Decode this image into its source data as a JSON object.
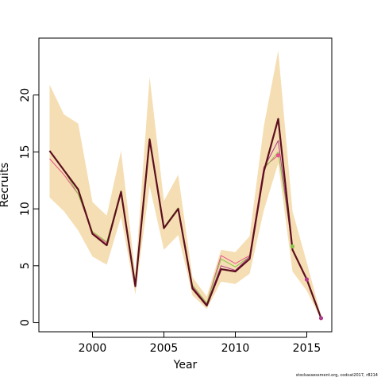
{
  "chart_data": {
    "type": "line",
    "xlabel": "Year",
    "ylabel": "Recruits",
    "xlim": [
      1996.25,
      2016.75
    ],
    "ylim": [
      -0.8,
      25.0
    ],
    "x_ticks": [
      2000,
      2005,
      2010,
      2015
    ],
    "x_tick_labels": [
      "2000",
      "2005",
      "2010",
      "2015"
    ],
    "y_ticks": [
      0,
      5,
      10,
      15,
      20
    ],
    "y_tick_labels": [
      "0",
      "5",
      "10",
      "15",
      "20"
    ],
    "grid": false,
    "legend": "none",
    "x": [
      1997,
      1998,
      1999,
      2000,
      2001,
      2002,
      2003,
      2004,
      2005,
      2006,
      2007,
      2008,
      2009,
      2010,
      2011,
      2012,
      2013,
      2014,
      2015,
      2016
    ],
    "band": {
      "color": "#f5deb3",
      "upper": [
        20.9,
        18.3,
        17.5,
        10.6,
        9.4,
        15.1,
        4.3,
        21.6,
        10.7,
        13.0,
        4.0,
        2.3,
        6.4,
        6.2,
        7.6,
        17.3,
        23.9,
        9.8,
        5.3,
        0.6
      ],
      "lower": [
        11.0,
        9.8,
        8.1,
        5.8,
        5.1,
        9.3,
        2.5,
        12.0,
        6.4,
        7.7,
        2.4,
        1.2,
        3.6,
        3.4,
        4.3,
        9.9,
        14.0,
        4.5,
        2.8,
        0.3
      ]
    },
    "series": [
      {
        "color": "#e8508a",
        "width": 1.0,
        "values": [
          14.4,
          13.0,
          11.3,
          7.9,
          7.0,
          11.5,
          3.2,
          16.1,
          8.4,
          10.0,
          3.2,
          1.7,
          5.9,
          5.2,
          5.9,
          13.7,
          14.7,
          null,
          null,
          null
        ]
      },
      {
        "color": "#8bc34a",
        "width": 1.0,
        "values": [
          15.1,
          13.4,
          11.3,
          8.0,
          7.1,
          11.6,
          3.2,
          16.2,
          8.4,
          10.1,
          3.3,
          1.7,
          5.6,
          4.9,
          5.8,
          13.5,
          15.0,
          6.7,
          null,
          null
        ]
      },
      {
        "color": "#b03a8c",
        "width": 1.0,
        "values": [
          15.1,
          13.4,
          11.7,
          7.8,
          6.8,
          11.5,
          3.2,
          16.1,
          8.3,
          10.0,
          3.1,
          1.6,
          5.0,
          4.6,
          5.8,
          13.6,
          16.0,
          6.4,
          3.8,
          0.4
        ]
      },
      {
        "color": "#5c0f1e",
        "width": 2.2,
        "values": [
          15.1,
          13.4,
          11.7,
          7.8,
          6.8,
          11.5,
          3.2,
          16.1,
          8.3,
          10.0,
          3.0,
          1.5,
          4.7,
          4.5,
          5.6,
          13.3,
          17.9,
          6.4,
          3.8,
          0.4
        ]
      }
    ],
    "points": [
      {
        "x": 2013,
        "y": 14.7,
        "color": "#e8508a"
      },
      {
        "x": 2014,
        "y": 6.7,
        "color": "#8bc34a"
      },
      {
        "x": 2015,
        "y": 3.8,
        "color": "#b03a8c"
      },
      {
        "x": 2016,
        "y": 0.4,
        "color": "#b03a8c"
      }
    ]
  },
  "footer": "stockassessment.org, codcat2017, r8214"
}
